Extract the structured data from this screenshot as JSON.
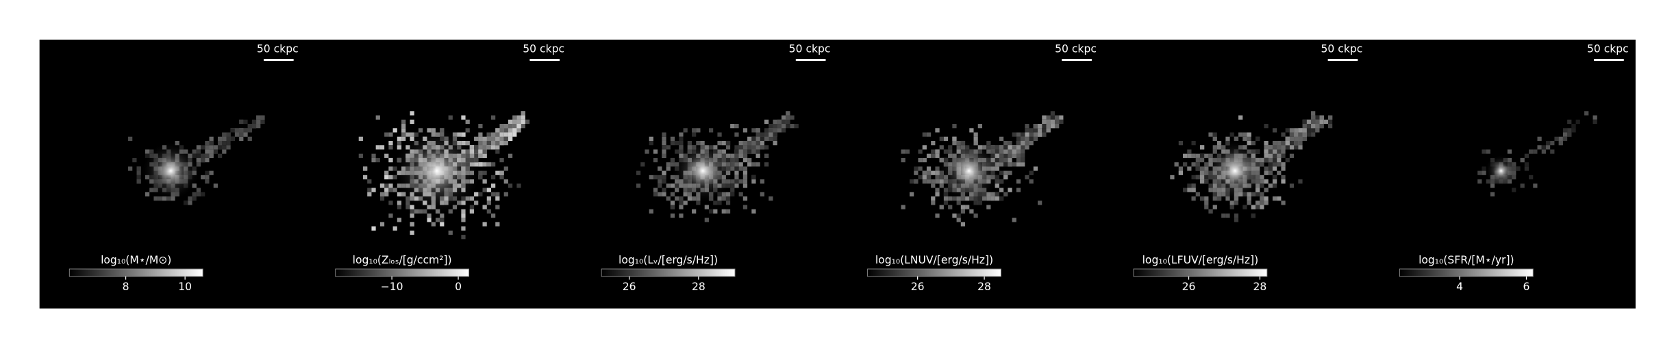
{
  "panels": [
    {
      "scale_label": "50 ckpc",
      "colorbar": {
        "label": "log₁₀(M⋆/M⊙)",
        "range": [
          6.1,
          10.6
        ],
        "ticks": [
          8,
          10
        ]
      }
    },
    {
      "scale_label": "50 ckpc",
      "colorbar": {
        "label": "log₁₀(Zₗₒₛ/[g/ccm²])",
        "range": [
          -18.5,
          1.6
        ],
        "ticks": [
          {
            "value": -10,
            "label": "−10"
          },
          0
        ]
      }
    },
    {
      "scale_label": "50 ckpc",
      "colorbar": {
        "label": "log₁₀(Lᵥ/[erg/s/Hz])",
        "range": [
          25.2,
          29.05
        ],
        "ticks": [
          26,
          28
        ]
      }
    },
    {
      "scale_label": "50 ckpc",
      "colorbar": {
        "label": "log₁₀(LNUV/[erg/s/Hz])",
        "range": [
          24.5,
          28.5
        ],
        "ticks": [
          26,
          28
        ]
      }
    },
    {
      "scale_label": "50 ckpc",
      "colorbar": {
        "label": "log₁₀(LFUV/[erg/s/Hz])",
        "range": [
          24.45,
          28.2
        ],
        "ticks": [
          26,
          28
        ]
      }
    },
    {
      "scale_label": "50 ckpc",
      "colorbar": {
        "label": "log₁₀(SFR/[M⋆/yr])",
        "range": [
          2.2,
          6.2
        ],
        "ticks": [
          4,
          6
        ]
      }
    }
  ]
}
